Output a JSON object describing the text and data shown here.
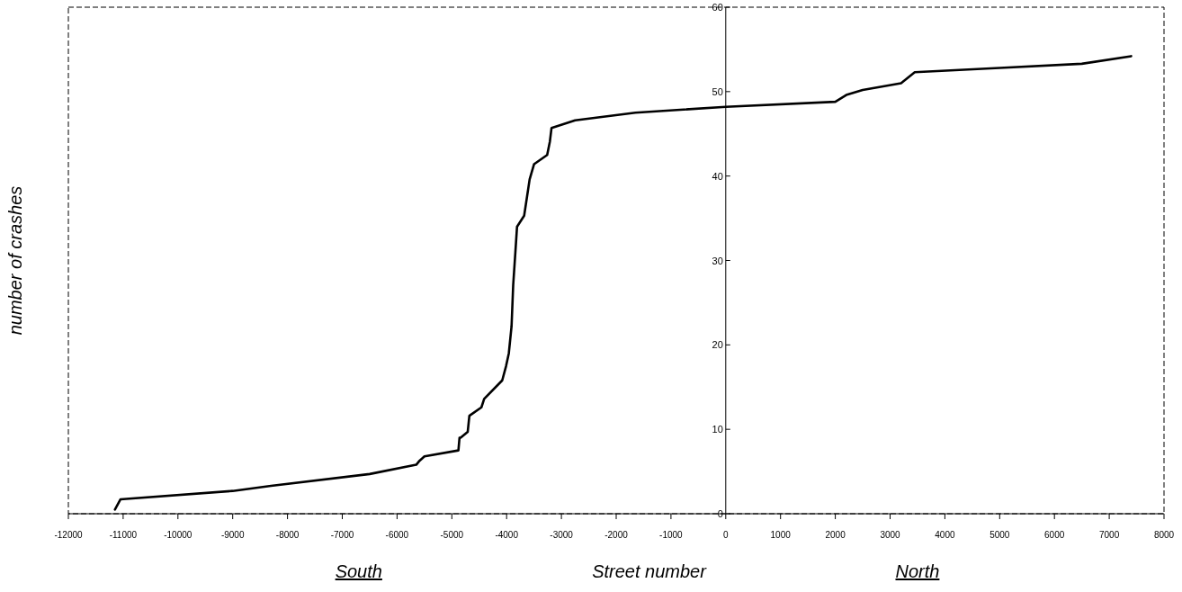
{
  "chart_data": {
    "type": "line",
    "xlabel": "Street number",
    "ylabel": "number of crashes",
    "annotations": [
      "South",
      "North"
    ],
    "xlim": [
      -12000,
      8000
    ],
    "xticks": [
      -12000,
      -11000,
      -10000,
      -9000,
      -8000,
      -7000,
      -6000,
      -5000,
      -4000,
      -3000,
      -2000,
      -1000,
      0,
      1000,
      2000,
      3000,
      4000,
      5000,
      6000,
      7000,
      8000
    ],
    "ylim": [
      0,
      60
    ],
    "yticks": [
      0,
      10,
      20,
      30,
      40,
      50,
      60
    ],
    "grid": false,
    "marker": "none",
    "line_style": "solid",
    "series": [
      {
        "color": "#000000",
        "x": [
          -11150,
          -11050,
          -9000,
          -8300,
          -6500,
          -5650,
          -5600,
          -5500,
          -4880,
          -4860,
          -4840,
          -4710,
          -4680,
          -4460,
          -4410,
          -4080,
          -4010,
          -3960,
          -3910,
          -3880,
          -3840,
          -3810,
          -3680,
          -3580,
          -3500,
          -3260,
          -3210,
          -3180,
          -2750,
          -1650,
          0,
          2000,
          2200,
          2500,
          3200,
          3450,
          5000,
          6500,
          7400
        ],
        "values": [
          0.5,
          1.7,
          2.7,
          3.3,
          4.7,
          5.8,
          6.2,
          6.8,
          7.5,
          9.0,
          9.0,
          9.7,
          11.6,
          12.6,
          13.6,
          15.8,
          17.5,
          19.0,
          22.2,
          27.1,
          31.0,
          34.0,
          35.3,
          39.6,
          41.4,
          42.5,
          44.1,
          45.7,
          46.6,
          47.5,
          48.2,
          48.8,
          49.6,
          50.2,
          51.0,
          52.3,
          52.8,
          53.3,
          54.2
        ]
      }
    ]
  }
}
